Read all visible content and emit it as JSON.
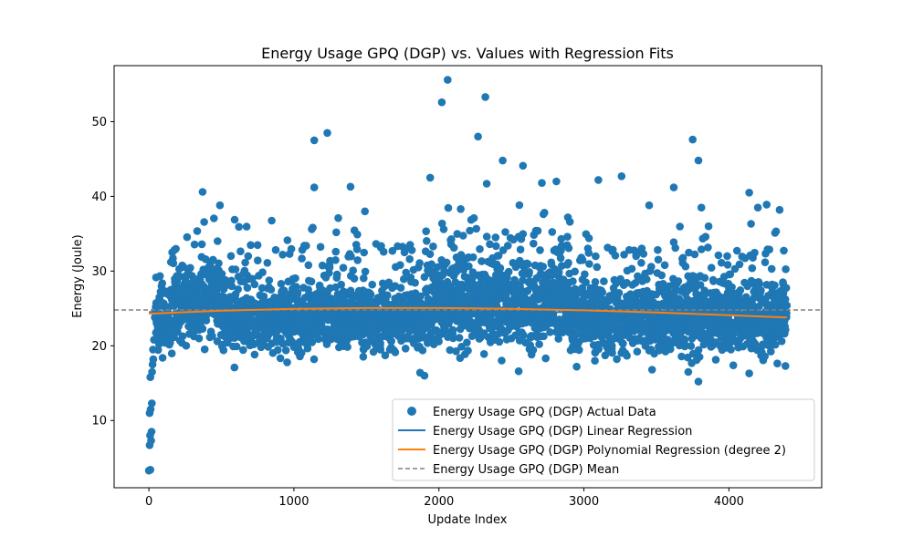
{
  "chart_data": {
    "type": "scatter",
    "title": "Energy Usage GPQ (DGP) vs. Values with Regression Fits",
    "xlabel": "Update Index",
    "ylabel": "Energy (Joule)",
    "xlim": [
      -240,
      4640
    ],
    "ylim": [
      1.0,
      57.5
    ],
    "xticks": [
      0,
      1000,
      2000,
      3000,
      4000
    ],
    "yticks": [
      10,
      20,
      30,
      40,
      50
    ],
    "legend_position": "lower right",
    "n_points": 4400,
    "mean": 24.8,
    "series": [
      {
        "name": "Energy Usage GPQ (DGP) Actual Data",
        "kind": "scatter",
        "color": "#1f77b4"
      },
      {
        "name": "Energy Usage GPQ (DGP) Linear Regression",
        "kind": "line",
        "color": "#1f77b4"
      },
      {
        "name": "Energy Usage GPQ (DGP) Polynomial Regression (degree 2)",
        "kind": "line",
        "color": "#ff7f0e"
      },
      {
        "name": "Energy Usage GPQ (DGP) Mean",
        "kind": "dashed",
        "color": "#808080"
      }
    ],
    "linear_regression": {
      "x": [
        0,
        4400
      ],
      "y": [
        24.5,
        24.5
      ]
    },
    "polynomial_regression": {
      "x": [
        0,
        500,
        1000,
        1500,
        2000,
        2500,
        3000,
        3500,
        4000,
        4400
      ],
      "y": [
        24.3,
        24.7,
        24.95,
        25.05,
        25.05,
        24.95,
        24.75,
        24.45,
        24.1,
        23.8
      ]
    },
    "startup_points": [
      {
        "x": 0,
        "y": 3.3
      },
      {
        "x": 10,
        "y": 3.4
      },
      {
        "x": 5,
        "y": 6.7
      },
      {
        "x": 15,
        "y": 7.3
      },
      {
        "x": 8,
        "y": 8.0
      },
      {
        "x": 18,
        "y": 8.5
      },
      {
        "x": 5,
        "y": 11.0
      },
      {
        "x": 12,
        "y": 11.5
      },
      {
        "x": 20,
        "y": 12.3
      },
      {
        "x": 10,
        "y": 15.8
      },
      {
        "x": 22,
        "y": 16.5
      },
      {
        "x": 25,
        "y": 17.5
      },
      {
        "x": 30,
        "y": 18.2
      },
      {
        "x": 28,
        "y": 19.5
      },
      {
        "x": 35,
        "y": 20.8
      }
    ],
    "outliers": [
      {
        "x": 2060,
        "y": 55.6
      },
      {
        "x": 2020,
        "y": 52.6
      },
      {
        "x": 2320,
        "y": 53.3
      },
      {
        "x": 1230,
        "y": 48.5
      },
      {
        "x": 1140,
        "y": 47.5
      },
      {
        "x": 2270,
        "y": 48.0
      },
      {
        "x": 3750,
        "y": 47.6
      },
      {
        "x": 3790,
        "y": 44.8
      },
      {
        "x": 2440,
        "y": 44.8
      },
      {
        "x": 2580,
        "y": 44.1
      },
      {
        "x": 3260,
        "y": 42.7
      },
      {
        "x": 1940,
        "y": 42.5
      },
      {
        "x": 3100,
        "y": 42.2
      },
      {
        "x": 2810,
        "y": 42.0
      },
      {
        "x": 1390,
        "y": 41.3
      },
      {
        "x": 1140,
        "y": 41.2
      },
      {
        "x": 3620,
        "y": 41.2
      },
      {
        "x": 4140,
        "y": 40.5
      },
      {
        "x": 370,
        "y": 40.6
      },
      {
        "x": 2710,
        "y": 41.8
      },
      {
        "x": 2330,
        "y": 41.7
      },
      {
        "x": 4260,
        "y": 38.9
      },
      {
        "x": 4350,
        "y": 38.2
      },
      {
        "x": 3450,
        "y": 38.8
      },
      {
        "x": 3810,
        "y": 38.5
      },
      {
        "x": 4200,
        "y": 38.5
      },
      {
        "x": 490,
        "y": 38.8
      },
      {
        "x": 3860,
        "y": 36.0
      },
      {
        "x": 2150,
        "y": 38.3
      },
      {
        "x": 1490,
        "y": 38.0
      },
      {
        "x": 3790,
        "y": 15.2
      },
      {
        "x": 2550,
        "y": 16.6
      },
      {
        "x": 3720,
        "y": 16.5
      },
      {
        "x": 4140,
        "y": 16.3
      },
      {
        "x": 1870,
        "y": 16.4
      },
      {
        "x": 1900,
        "y": 16.0
      },
      {
        "x": 3470,
        "y": 16.8
      },
      {
        "x": 2950,
        "y": 17.2
      },
      {
        "x": 590,
        "y": 17.1
      },
      {
        "x": 4390,
        "y": 17.3
      }
    ]
  }
}
